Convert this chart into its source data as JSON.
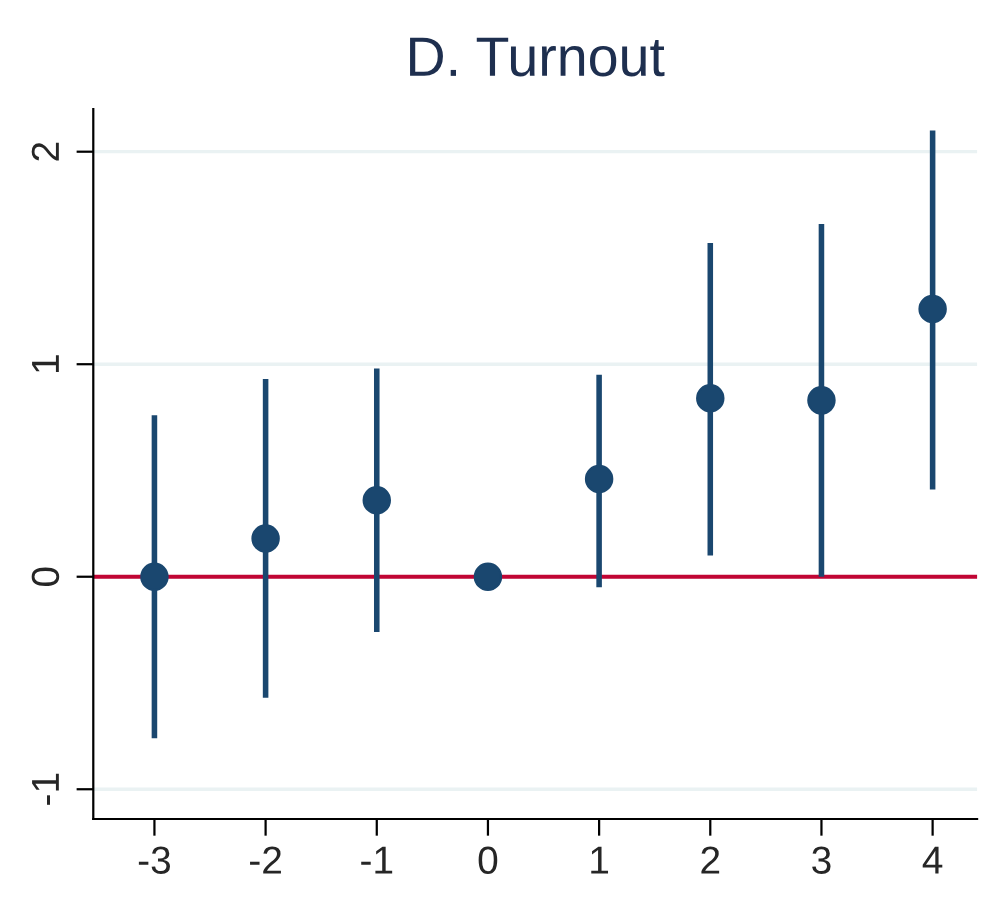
{
  "chart_data": {
    "type": "scatter",
    "title": "D. Turnout",
    "x": [
      -3,
      -2,
      -1,
      0,
      1,
      2,
      3,
      4
    ],
    "series": [
      {
        "color": "#1a476f",
        "values": [
          0,
          0.18,
          0.36,
          0,
          0.46,
          0.84,
          0.83,
          1.26
        ],
        "errors": [
          [
            -0.76,
            0.76
          ],
          [
            -0.57,
            0.93
          ],
          [
            -0.26,
            0.98
          ],
          null,
          [
            -0.05,
            0.95
          ],
          [
            0.1,
            1.57
          ],
          [
            0.0,
            1.66
          ],
          [
            0.41,
            2.1
          ]
        ]
      }
    ],
    "xlim": [
      -3.55,
      4.4
    ],
    "xticks": [
      -3,
      -2,
      -1,
      0,
      1,
      2,
      3,
      4
    ],
    "ylim": [
      -1.14,
      2.2
    ],
    "yticks": [
      -1,
      0,
      1,
      2
    ],
    "ref_lines": [
      {
        "axis": "y",
        "value": 0,
        "color": "#c10534"
      }
    ],
    "grid": "y",
    "marker": "circle"
  }
}
